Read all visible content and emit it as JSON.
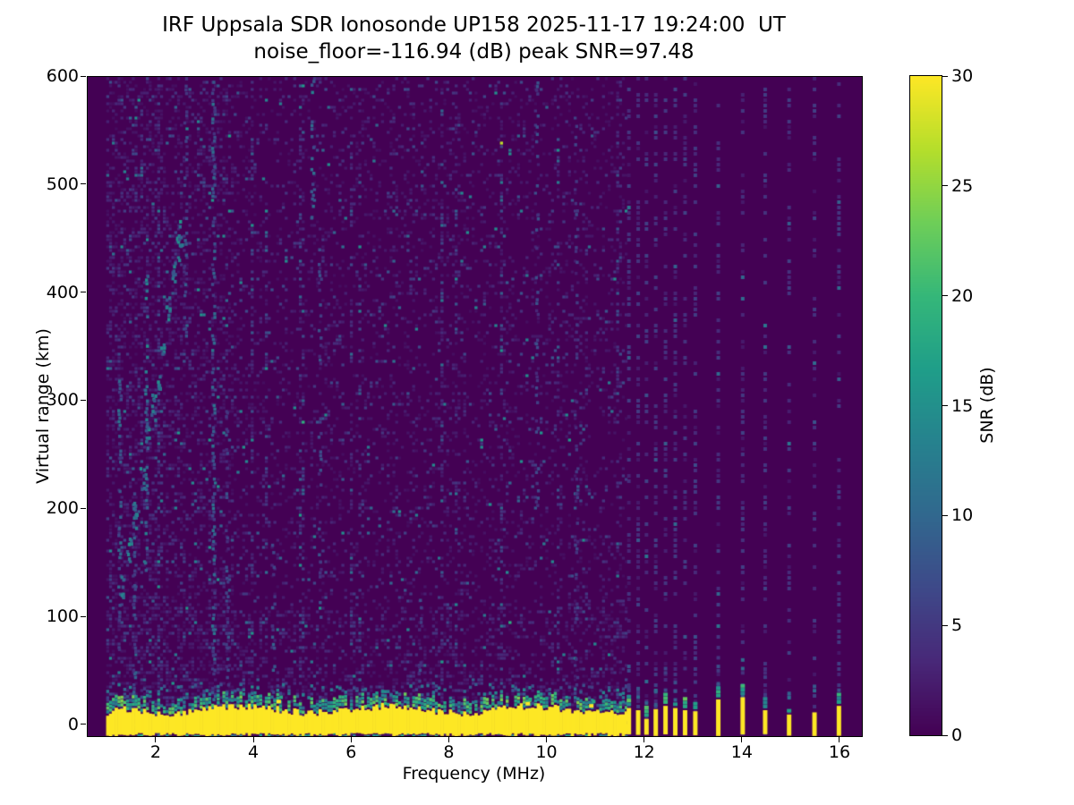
{
  "title": {
    "line1": "IRF Uppsala SDR Ionosonde UP158 2025-11-17 19:24:00  UT",
    "line2": "noise_floor=-116.94 (dB) peak SNR=97.48"
  },
  "chart_data": {
    "type": "heatmap",
    "xlabel": "Frequency (MHz)",
    "ylabel": "Virtual range (km)",
    "xlim": [
      0.59,
      16.44
    ],
    "ylim": [
      -10,
      600
    ],
    "xticks": [
      2,
      4,
      6,
      8,
      10,
      12,
      14,
      16
    ],
    "yticks": [
      0,
      100,
      200,
      300,
      400,
      500,
      600
    ],
    "grid": false,
    "colorbar": {
      "label": "SNR (dB)",
      "ticks": [
        0,
        5,
        10,
        15,
        20,
        25,
        30
      ],
      "vmin": 0,
      "vmax": 30,
      "position": "right"
    },
    "colormap": {
      "name": "viridis",
      "stops": [
        "#440154",
        "#482878",
        "#3e4989",
        "#31688e",
        "#26828e",
        "#1f9e89",
        "#35b779",
        "#6ece58",
        "#b5de2b",
        "#fde725"
      ]
    },
    "features": {
      "background_snr_db": 0,
      "sweep": {
        "f_start_mhz": 1.0,
        "f_end_mhz": 11.66,
        "description": "continuous frequency sweep with speckle noise, denser below 3.6 MHz"
      },
      "ground_echo_band": {
        "f_start_mhz": 1.0,
        "f_end_mhz": 11.66,
        "top_km": 13,
        "bottom_km": -7,
        "snr_db": 30
      },
      "discrete_signals": [
        {
          "f": 11.67,
          "stub_top_km": 16
        },
        {
          "f": 11.86,
          "stub_top_km": 14
        },
        {
          "f": 12.03,
          "stub_top_km": 6
        },
        {
          "f": 12.22,
          "stub_top_km": 15
        },
        {
          "f": 12.42,
          "stub_top_km": 18
        },
        {
          "f": 12.62,
          "stub_top_km": 16
        },
        {
          "f": 12.82,
          "stub_top_km": 14
        },
        {
          "f": 13.03,
          "stub_top_km": 13
        },
        {
          "f": 13.5,
          "stub_top_km": 24
        },
        {
          "f": 14.0,
          "stub_top_km": 26
        },
        {
          "f": 14.46,
          "stub_top_km": 14
        },
        {
          "f": 14.95,
          "stub_top_km": 10
        },
        {
          "f": 15.47,
          "stub_top_km": 12
        },
        {
          "f": 15.97,
          "stub_top_km": 18
        }
      ],
      "noise_streaks": [
        {
          "f": 1.25,
          "h0": 60,
          "h1": 320,
          "density": 0.5,
          "v0": 4,
          "v1": 12
        },
        {
          "f": 1.55,
          "h0": 0,
          "h1": 220,
          "density": 0.45,
          "v0": 4,
          "v1": 10
        },
        {
          "f": 1.8,
          "h0": 140,
          "h1": 420,
          "density": 0.5,
          "v0": 6,
          "v1": 15
        },
        {
          "f": 2.6,
          "h0": 350,
          "h1": 600,
          "density": 0.35,
          "v0": 3,
          "v1": 9
        },
        {
          "f": 3.17,
          "h0": 0,
          "h1": 600,
          "density": 0.55,
          "v0": 4,
          "v1": 12
        },
        {
          "f": 3.45,
          "h0": 0,
          "h1": 300,
          "density": 0.4,
          "v0": 3,
          "v1": 9
        },
        {
          "f": 4.4,
          "h0": 0,
          "h1": 180,
          "density": 0.35,
          "v0": 4,
          "v1": 10
        },
        {
          "f": 5.2,
          "h0": 470,
          "h1": 600,
          "density": 0.5,
          "v0": 6,
          "v1": 14
        },
        {
          "f": 5.35,
          "h0": 100,
          "h1": 480,
          "density": 0.3,
          "v0": 3,
          "v1": 8
        },
        {
          "f": 7.4,
          "h0": 0,
          "h1": 150,
          "density": 0.3,
          "v0": 3,
          "v1": 8
        },
        {
          "f": 9.8,
          "h0": 200,
          "h1": 600,
          "density": 0.3,
          "v0": 3,
          "v1": 8
        },
        {
          "f": 10.6,
          "h0": 0,
          "h1": 600,
          "density": 0.25,
          "v0": 2,
          "v1": 7
        }
      ],
      "echo_trace_points_mhz_km": [
        [
          1.32,
          125
        ],
        [
          1.45,
          160
        ],
        [
          1.58,
          195
        ],
        [
          1.72,
          230
        ],
        [
          1.85,
          265
        ],
        [
          1.95,
          295
        ],
        [
          2.05,
          320
        ],
        [
          2.15,
          350
        ],
        [
          2.25,
          385
        ],
        [
          2.35,
          415
        ],
        [
          2.45,
          440
        ],
        [
          2.52,
          455
        ]
      ],
      "above_band_blobs_mhz_km": [
        [
          4.5,
          22
        ],
        [
          9.6,
          20
        ],
        [
          10.9,
          18
        ]
      ]
    }
  }
}
